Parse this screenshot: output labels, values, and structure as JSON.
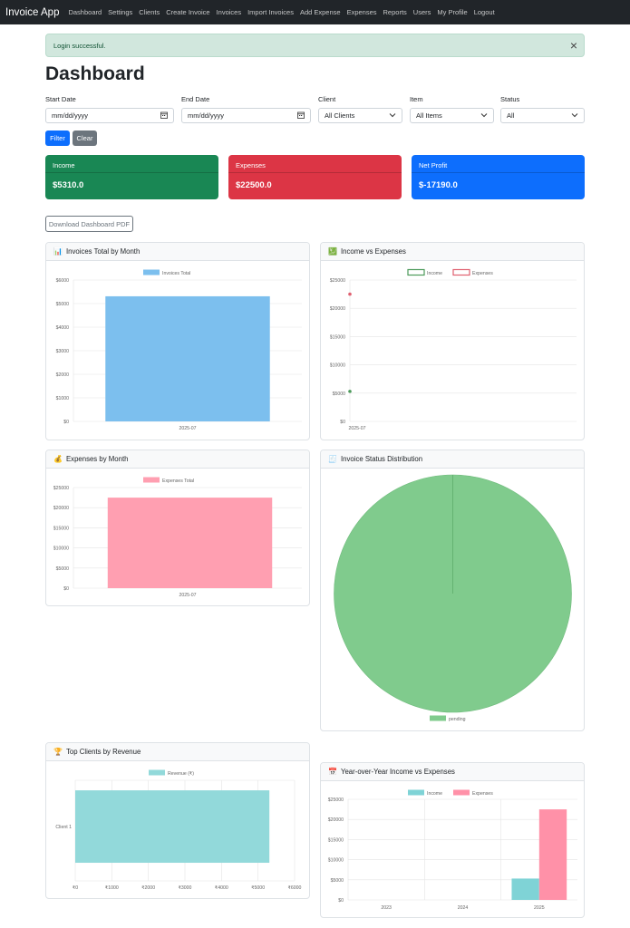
{
  "app": {
    "brand": "Invoice App"
  },
  "nav": [
    "Dashboard",
    "Settings",
    "Clients",
    "Create Invoice",
    "Invoices",
    "Import Invoices",
    "Add Expense",
    "Expenses",
    "Reports",
    "Users",
    "My Profile",
    "Logout"
  ],
  "alert": {
    "message": "Login successful.",
    "close_glyph": "×"
  },
  "page": {
    "title": "Dashboard"
  },
  "filters": {
    "start_date": {
      "label": "Start Date",
      "placeholder": "mm/dd/yyyy"
    },
    "end_date": {
      "label": "End Date",
      "placeholder": "mm/dd/yyyy"
    },
    "client": {
      "label": "Client",
      "value": "All Clients"
    },
    "item": {
      "label": "Item",
      "value": "All Items"
    },
    "status": {
      "label": "Status",
      "value": "All"
    },
    "filter_button": "Filter",
    "clear_button": "Clear"
  },
  "stats": {
    "income": {
      "label": "Income",
      "value": "$5310.0",
      "color": "#198754"
    },
    "expenses": {
      "label": "Expenses",
      "value": "$22500.0",
      "color": "#dc3545"
    },
    "net_profit": {
      "label": "Net Profit",
      "value": "$-17190.0",
      "color": "#0d6efd"
    }
  },
  "download_button": "Download Dashboard PDF",
  "cards": {
    "invoices_month": {
      "emoji": "📊",
      "title": "Invoices Total by Month"
    },
    "income_expenses": {
      "emoji": "💹",
      "title": "Income vs Expenses"
    },
    "expenses_month": {
      "emoji": "💰",
      "title": "Expenses by Month"
    },
    "status_dist": {
      "emoji": "🧾",
      "title": "Invoice Status Distribution"
    },
    "top_clients": {
      "emoji": "🏆",
      "title": "Top Clients by Revenue"
    },
    "yoy": {
      "emoji": "📅",
      "title": "Year-over-Year Income vs Expenses"
    }
  },
  "chart_data": [
    {
      "id": "invoices_month",
      "type": "bar",
      "categories": [
        "2025-07"
      ],
      "series": [
        {
          "name": "Invoices Total",
          "values": [
            5310
          ],
          "color": "#7cbfee"
        }
      ],
      "ylim": [
        0,
        6000
      ],
      "ticks": [
        "$0",
        "$1000",
        "$2000",
        "$3000",
        "$4000",
        "$5000",
        "$6000"
      ],
      "grid": true,
      "legend": "top"
    },
    {
      "id": "income_expenses",
      "type": "scatter",
      "categories": [
        "2025-07"
      ],
      "series": [
        {
          "name": "Income",
          "values": [
            5310
          ],
          "color": "#4c9a5a"
        },
        {
          "name": "Expenses",
          "values": [
            22500
          ],
          "color": "#e06070"
        }
      ],
      "ylim": [
        0,
        25000
      ],
      "ticks": [
        "$0",
        "$5000",
        "$10000",
        "$15000",
        "$20000",
        "$25000"
      ],
      "grid": true,
      "legend": "top"
    },
    {
      "id": "expenses_month",
      "type": "bar",
      "categories": [
        "2025-07"
      ],
      "series": [
        {
          "name": "Expenses Total",
          "values": [
            22500
          ],
          "color": "#ff9fb1"
        }
      ],
      "ylim": [
        0,
        25000
      ],
      "ticks": [
        "$0",
        "$5000",
        "$10000",
        "$15000",
        "$20000",
        "$25000"
      ],
      "grid": true,
      "legend": "top"
    },
    {
      "id": "status_dist",
      "type": "pie",
      "categories": [
        "pending"
      ],
      "values": [
        1
      ],
      "colors": [
        "#80cb8d"
      ],
      "legend": "bottom"
    },
    {
      "id": "top_clients",
      "type": "bar",
      "orientation": "horizontal",
      "categories": [
        "Client 1"
      ],
      "series": [
        {
          "name": "Revenue (₹)",
          "values": [
            5310
          ],
          "color": "#92d9da"
        }
      ],
      "xlim": [
        0,
        6000
      ],
      "ticks": [
        "₹0",
        "₹1000",
        "₹2000",
        "₹3000",
        "₹4000",
        "₹5000",
        "₹6000"
      ],
      "grid": true,
      "legend": "top"
    },
    {
      "id": "yoy",
      "type": "bar",
      "categories": [
        "2023",
        "2024",
        "2025"
      ],
      "series": [
        {
          "name": "Income",
          "values": [
            0,
            0,
            5310
          ],
          "color": "#7fd3d6"
        },
        {
          "name": "Expenses",
          "values": [
            0,
            0,
            22500
          ],
          "color": "#ff91a8"
        }
      ],
      "ylim": [
        0,
        25000
      ],
      "ticks": [
        "$0",
        "$5000",
        "$10000",
        "$15000",
        "$20000",
        "$25000"
      ],
      "grid": true,
      "legend": "top"
    }
  ]
}
